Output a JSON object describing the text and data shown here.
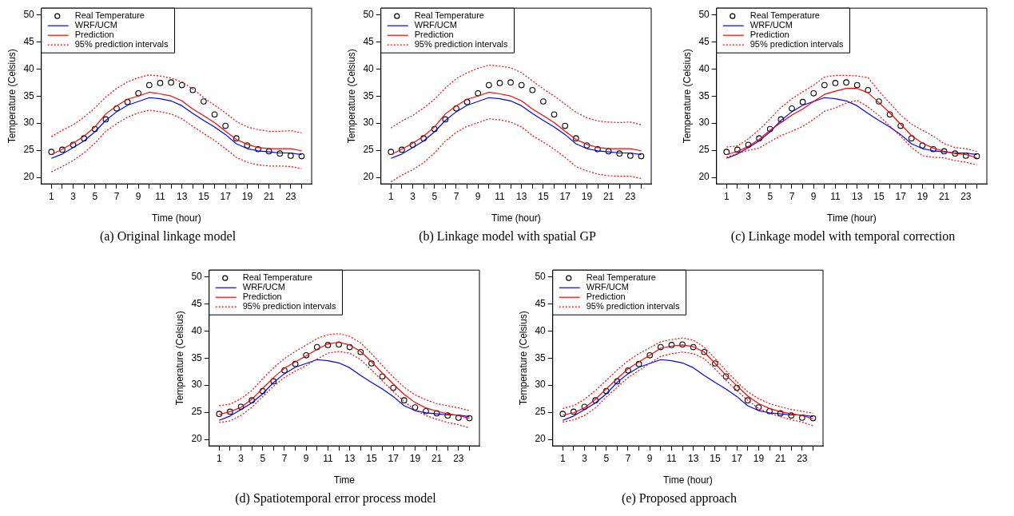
{
  "chart_data": [
    {
      "type": "line",
      "title": "(a) Original linkage model",
      "xlabel": "Time (hour)",
      "ylabel": "Temperature (Celsius)",
      "legend": "top left",
      "x": [
        1,
        2,
        3,
        4,
        5,
        6,
        7,
        8,
        9,
        10,
        11,
        12,
        13,
        14,
        15,
        16,
        17,
        18,
        19,
        20,
        21,
        22,
        23,
        24
      ],
      "xlim": [
        0.08,
        24.92
      ],
      "xticks": [
        1,
        {
          "value": 2,
          "label": null
        },
        3,
        {
          "value": 4,
          "label": null
        },
        5,
        {
          "value": 6,
          "label": null
        },
        7,
        {
          "value": 8,
          "label": null
        },
        9,
        {
          "value": 10,
          "label": null
        },
        11,
        {
          "value": 12,
          "label": null
        },
        13,
        {
          "value": 14,
          "label": null
        },
        15,
        {
          "value": 16,
          "label": null
        },
        17,
        {
          "value": 18,
          "label": null
        },
        19,
        {
          "value": 20,
          "label": null
        },
        21,
        {
          "value": 22,
          "label": null
        },
        23,
        {
          "value": 24,
          "label": null
        }
      ],
      "ylim": [
        18.8,
        51.2
      ],
      "yticks": [
        20,
        25,
        30,
        35,
        40,
        45,
        50
      ],
      "series": [
        {
          "name": "Real Temperature",
          "type": "scatter",
          "marker": "circle",
          "color": "#000000",
          "values": [
            24.7,
            25.1,
            26.0,
            27.2,
            28.9,
            30.7,
            32.7,
            33.9,
            35.5,
            37.0,
            37.4,
            37.5,
            37.0,
            36.1,
            34.0,
            31.6,
            29.5,
            27.2,
            25.9,
            25.2,
            24.8,
            24.4,
            24.0,
            23.9
          ]
        },
        {
          "name": "WRF/UCM",
          "type": "line",
          "color": "#0000ff",
          "values": [
            23.5,
            24.3,
            25.5,
            26.7,
            28.4,
            30.5,
            32.1,
            33.3,
            34.0,
            34.7,
            34.5,
            34.1,
            33.2,
            31.8,
            30.5,
            29.3,
            27.9,
            26.2,
            25.3,
            24.9,
            24.7,
            24.5,
            24.5,
            24.2
          ]
        },
        {
          "name": "Prediction",
          "type": "line",
          "color": "#ff0000",
          "values": [
            24.2,
            25.2,
            26.3,
            27.6,
            29.3,
            31.7,
            33.2,
            34.4,
            35.0,
            35.7,
            35.4,
            35.0,
            34.1,
            32.6,
            31.4,
            30.1,
            28.5,
            27.0,
            26.1,
            25.5,
            25.3,
            25.3,
            25.3,
            24.9
          ]
        },
        {
          "name": "95% prediction intervals",
          "type": "line",
          "line_style": "dotted",
          "color": "#ff0000",
          "values": [
            27.5,
            28.7,
            29.7,
            31.1,
            32.8,
            34.8,
            36.4,
            37.6,
            38.4,
            38.9,
            38.7,
            38.3,
            37.6,
            36.3,
            34.7,
            33.3,
            31.9,
            30.3,
            29.3,
            28.8,
            28.5,
            28.5,
            28.6,
            28.2
          ]
        },
        {
          "type": "line",
          "line_style": "dotted",
          "color": "#ff0000",
          "values": [
            21.0,
            22.0,
            23.1,
            24.5,
            26.3,
            28.5,
            29.9,
            31.1,
            31.9,
            32.4,
            32.1,
            31.7,
            30.8,
            29.4,
            28.1,
            26.8,
            25.3,
            23.7,
            22.8,
            22.3,
            22.1,
            22.1,
            22.0,
            21.6
          ]
        }
      ]
    },
    {
      "type": "line",
      "title": "(b) Linkage model with spatial GP",
      "xlabel": "Time (hour)",
      "ylabel": "Temperature (Celsius)",
      "legend": "top left",
      "x": [
        1,
        2,
        3,
        4,
        5,
        6,
        7,
        8,
        9,
        10,
        11,
        12,
        13,
        14,
        15,
        16,
        17,
        18,
        19,
        20,
        21,
        22,
        23,
        24
      ],
      "xlim": [
        0.08,
        24.92
      ],
      "xticks": [
        1,
        {
          "value": 2,
          "label": null
        },
        3,
        {
          "value": 4,
          "label": null
        },
        5,
        {
          "value": 6,
          "label": null
        },
        7,
        {
          "value": 8,
          "label": null
        },
        9,
        {
          "value": 10,
          "label": null
        },
        11,
        {
          "value": 12,
          "label": null
        },
        13,
        {
          "value": 14,
          "label": null
        },
        15,
        {
          "value": 16,
          "label": null
        },
        17,
        {
          "value": 18,
          "label": null
        },
        19,
        {
          "value": 20,
          "label": null
        },
        21,
        {
          "value": 22,
          "label": null
        },
        23,
        {
          "value": 24,
          "label": null
        }
      ],
      "ylim": [
        18.8,
        51.2
      ],
      "yticks": [
        20,
        25,
        30,
        35,
        40,
        45,
        50
      ],
      "series": [
        {
          "name": "Real Temperature",
          "type": "scatter",
          "marker": "circle",
          "color": "#000000",
          "values": [
            24.7,
            25.1,
            26.0,
            27.2,
            28.9,
            30.7,
            32.7,
            33.9,
            35.5,
            37.0,
            37.4,
            37.5,
            37.0,
            36.1,
            34.0,
            31.6,
            29.5,
            27.2,
            25.9,
            25.2,
            24.8,
            24.4,
            24.0,
            23.9
          ]
        },
        {
          "name": "WRF/UCM",
          "type": "line",
          "color": "#0000ff",
          "values": [
            23.5,
            24.3,
            25.5,
            26.7,
            28.4,
            30.5,
            32.1,
            33.3,
            34.0,
            34.7,
            34.5,
            34.1,
            33.2,
            31.8,
            30.5,
            29.3,
            27.9,
            26.2,
            25.3,
            24.9,
            24.7,
            24.5,
            24.5,
            24.2
          ]
        },
        {
          "name": "Prediction",
          "type": "line",
          "color": "#ff0000",
          "values": [
            24.2,
            25.2,
            26.3,
            27.6,
            29.3,
            31.7,
            33.2,
            34.4,
            35.0,
            35.7,
            35.4,
            35.0,
            34.1,
            32.6,
            31.4,
            30.1,
            28.5,
            27.0,
            26.1,
            25.5,
            25.3,
            25.3,
            25.3,
            24.9
          ]
        },
        {
          "name": "95% prediction intervals",
          "type": "line",
          "line_style": "dotted",
          "color": "#ff0000",
          "values": [
            29.1,
            30.4,
            31.4,
            32.8,
            34.4,
            36.5,
            38.2,
            39.3,
            40.1,
            40.7,
            40.5,
            40.2,
            39.3,
            37.8,
            36.3,
            35.0,
            33.5,
            32.0,
            31.0,
            30.4,
            30.2,
            30.1,
            30.2,
            29.7
          ]
        },
        {
          "type": "line",
          "line_style": "dotted",
          "color": "#ff0000",
          "values": [
            19.2,
            20.4,
            21.4,
            22.7,
            24.5,
            26.7,
            28.3,
            29.4,
            30.1,
            30.8,
            30.6,
            30.2,
            29.3,
            27.7,
            26.5,
            25.2,
            23.7,
            22.0,
            21.2,
            20.6,
            20.3,
            20.2,
            20.2,
            19.8
          ]
        }
      ]
    },
    {
      "type": "line",
      "title": "(c) Linkage model with temporal correction",
      "xlabel": "Time (hour)",
      "ylabel": "Temperature (Celsius)",
      "legend": "top left",
      "x": [
        1,
        2,
        3,
        4,
        5,
        6,
        7,
        8,
        9,
        10,
        11,
        12,
        13,
        14,
        15,
        16,
        17,
        18,
        19,
        20,
        21,
        22,
        23,
        24
      ],
      "xlim": [
        0.08,
        24.92
      ],
      "xticks": [
        1,
        {
          "value": 2,
          "label": null
        },
        3,
        {
          "value": 4,
          "label": null
        },
        5,
        {
          "value": 6,
          "label": null
        },
        7,
        {
          "value": 8,
          "label": null
        },
        9,
        {
          "value": 10,
          "label": null
        },
        11,
        {
          "value": 12,
          "label": null
        },
        13,
        {
          "value": 14,
          "label": null
        },
        15,
        {
          "value": 16,
          "label": null
        },
        17,
        {
          "value": 18,
          "label": null
        },
        19,
        {
          "value": 20,
          "label": null
        },
        21,
        {
          "value": 22,
          "label": null
        },
        23,
        {
          "value": 24,
          "label": null
        }
      ],
      "ylim": [
        18.8,
        51.2
      ],
      "yticks": [
        20,
        25,
        30,
        35,
        40,
        45,
        50
      ],
      "series": [
        {
          "name": "Real Temperature",
          "type": "scatter",
          "marker": "circle",
          "color": "#000000",
          "values": [
            24.7,
            25.1,
            26.0,
            27.2,
            28.9,
            30.7,
            32.7,
            33.9,
            35.5,
            37.0,
            37.4,
            37.5,
            37.0,
            36.1,
            34.0,
            31.6,
            29.5,
            27.2,
            25.9,
            25.2,
            24.8,
            24.4,
            24.0,
            23.9
          ]
        },
        {
          "name": "WRF/UCM",
          "type": "line",
          "color": "#0000ff",
          "values": [
            23.5,
            24.3,
            25.5,
            26.7,
            28.4,
            30.5,
            32.1,
            33.3,
            34.0,
            34.7,
            34.5,
            34.1,
            33.2,
            31.8,
            30.5,
            29.3,
            27.9,
            26.2,
            25.3,
            24.9,
            24.7,
            24.5,
            24.5,
            24.2
          ]
        },
        {
          "name": "Prediction",
          "type": "line",
          "color": "#ff0000",
          "values": [
            24.2,
            24.8,
            25.7,
            27.0,
            28.7,
            30.1,
            31.5,
            32.6,
            34.0,
            35.3,
            35.9,
            36.4,
            36.4,
            35.6,
            33.8,
            31.9,
            29.8,
            27.7,
            26.3,
            25.4,
            24.8,
            24.4,
            24.2,
            23.6
          ]
        },
        {
          "name": "95% prediction intervals",
          "type": "line",
          "line_style": "dotted",
          "color": "#ff0000",
          "values": [
            25.6,
            25.8,
            27.1,
            28.8,
            30.8,
            32.9,
            34.5,
            35.8,
            37.0,
            38.5,
            38.8,
            38.8,
            38.7,
            38.4,
            35.9,
            33.7,
            31.5,
            29.8,
            28.7,
            27.6,
            26.2,
            25.5,
            25.3,
            24.8
          ]
        },
        {
          "type": "line",
          "line_style": "dotted",
          "color": "#ff0000",
          "values": [
            23.7,
            24.4,
            25.0,
            25.4,
            26.6,
            27.7,
            28.5,
            29.4,
            30.7,
            32.2,
            32.8,
            33.7,
            34.2,
            33.0,
            31.4,
            29.5,
            27.6,
            25.5,
            24.0,
            23.7,
            23.6,
            23.1,
            22.8,
            22.3
          ]
        }
      ]
    },
    {
      "type": "line",
      "title": "(d) Spatiotemporal error process model",
      "xlabel": "Time",
      "ylabel": "Temperature (Celsius)",
      "legend": "top left",
      "x": [
        1,
        2,
        3,
        4,
        5,
        6,
        7,
        8,
        9,
        10,
        11,
        12,
        13,
        14,
        15,
        16,
        17,
        18,
        19,
        20,
        21,
        22,
        23,
        24
      ],
      "xlim": [
        0.08,
        24.92
      ],
      "xticks": [
        1,
        {
          "value": 2,
          "label": null
        },
        3,
        {
          "value": 4,
          "label": null
        },
        5,
        {
          "value": 6,
          "label": null
        },
        7,
        {
          "value": 8,
          "label": null
        },
        9,
        {
          "value": 10,
          "label": null
        },
        11,
        {
          "value": 12,
          "label": null
        },
        13,
        {
          "value": 14,
          "label": null
        },
        15,
        {
          "value": 16,
          "label": null
        },
        17,
        {
          "value": 18,
          "label": null
        },
        19,
        {
          "value": 20,
          "label": null
        },
        21,
        {
          "value": 22,
          "label": null
        },
        23,
        {
          "value": 24,
          "label": null
        }
      ],
      "ylim": [
        18.8,
        51.2
      ],
      "yticks": [
        20,
        25,
        30,
        35,
        40,
        45,
        50
      ],
      "series": [
        {
          "name": "Real Temperature",
          "type": "scatter",
          "marker": "circle",
          "color": "#000000",
          "values": [
            24.7,
            25.1,
            26.0,
            27.2,
            28.9,
            30.7,
            32.7,
            33.9,
            35.5,
            37.0,
            37.4,
            37.5,
            37.0,
            36.1,
            34.0,
            31.6,
            29.5,
            27.2,
            25.9,
            25.2,
            24.8,
            24.4,
            24.0,
            23.9
          ]
        },
        {
          "name": "WRF/UCM",
          "type": "line",
          "color": "#0000ff",
          "values": [
            23.5,
            24.3,
            25.5,
            26.7,
            28.4,
            30.5,
            32.1,
            33.3,
            34.0,
            34.7,
            34.5,
            34.1,
            33.2,
            31.8,
            30.5,
            29.3,
            27.9,
            26.2,
            25.3,
            24.9,
            24.7,
            24.5,
            24.5,
            24.2
          ]
        },
        {
          "name": "Prediction",
          "type": "line",
          "color": "#ff0000",
          "values": [
            24.6,
            25.1,
            25.9,
            27.4,
            29.4,
            31.4,
            33.1,
            34.3,
            35.4,
            36.6,
            37.6,
            37.9,
            37.4,
            36.2,
            34.3,
            32.2,
            30.2,
            28.3,
            26.8,
            25.8,
            25.2,
            24.7,
            24.4,
            23.9
          ]
        },
        {
          "name": "95% prediction intervals",
          "type": "line",
          "line_style": "dotted",
          "color": "#ff0000",
          "values": [
            26.2,
            26.5,
            27.5,
            29.0,
            31.2,
            33.2,
            34.9,
            36.2,
            37.4,
            38.6,
            39.3,
            39.5,
            39.0,
            37.8,
            35.8,
            33.6,
            31.5,
            29.6,
            28.2,
            27.3,
            26.6,
            26.2,
            25.8,
            25.3
          ]
        },
        {
          "type": "line",
          "line_style": "dotted",
          "color": "#ff0000",
          "values": [
            23.1,
            23.4,
            24.4,
            25.9,
            27.9,
            29.8,
            31.4,
            32.6,
            33.6,
            34.8,
            35.9,
            36.2,
            35.9,
            34.7,
            32.8,
            30.8,
            28.8,
            27.0,
            25.4,
            24.4,
            23.7,
            23.1,
            22.7,
            22.1
          ]
        }
      ]
    },
    {
      "type": "line",
      "title": "(e) Proposed approach",
      "xlabel": "Time (hour)",
      "ylabel": "Temperature (Celsius)",
      "legend": "top left",
      "x": [
        1,
        2,
        3,
        4,
        5,
        6,
        7,
        8,
        9,
        10,
        11,
        12,
        13,
        14,
        15,
        16,
        17,
        18,
        19,
        20,
        21,
        22,
        23,
        24
      ],
      "xlim": [
        0.08,
        24.92
      ],
      "xticks": [
        1,
        {
          "value": 2,
          "label": null
        },
        3,
        {
          "value": 4,
          "label": null
        },
        5,
        {
          "value": 6,
          "label": null
        },
        7,
        {
          "value": 8,
          "label": null
        },
        9,
        {
          "value": 10,
          "label": null
        },
        11,
        {
          "value": 12,
          "label": null
        },
        13,
        {
          "value": 14,
          "label": null
        },
        15,
        {
          "value": 16,
          "label": null
        },
        17,
        {
          "value": 18,
          "label": null
        },
        19,
        {
          "value": 20,
          "label": null
        },
        21,
        {
          "value": 22,
          "label": null
        },
        23,
        {
          "value": 24,
          "label": null
        }
      ],
      "ylim": [
        18.8,
        51.2
      ],
      "yticks": [
        20,
        25,
        30,
        35,
        40,
        45,
        50
      ],
      "series": [
        {
          "name": "Real Temperature",
          "type": "scatter",
          "marker": "circle",
          "color": "#000000",
          "values": [
            24.7,
            25.1,
            26.0,
            27.2,
            28.9,
            30.7,
            32.7,
            33.9,
            35.5,
            37.0,
            37.4,
            37.5,
            37.0,
            36.1,
            34.0,
            31.6,
            29.5,
            27.2,
            25.9,
            25.2,
            24.8,
            24.4,
            24.0,
            23.9
          ]
        },
        {
          "name": "WRF/UCM",
          "type": "line",
          "color": "#0000ff",
          "values": [
            23.5,
            24.3,
            25.5,
            26.7,
            28.4,
            30.5,
            32.1,
            33.3,
            34.0,
            34.7,
            34.5,
            34.1,
            33.2,
            31.8,
            30.5,
            29.3,
            27.9,
            26.2,
            25.3,
            24.9,
            24.7,
            24.5,
            24.5,
            24.2
          ]
        },
        {
          "name": "Prediction",
          "type": "line",
          "color": "#ff0000",
          "values": [
            24.5,
            24.9,
            25.8,
            27.4,
            29.3,
            31.2,
            33.0,
            34.3,
            35.5,
            36.8,
            37.2,
            37.4,
            37.1,
            36.1,
            34.0,
            31.8,
            29.9,
            28.0,
            26.6,
            25.7,
            25.1,
            24.7,
            24.4,
            23.8
          ]
        },
        {
          "name": "95% prediction intervals",
          "type": "line",
          "line_style": "dotted",
          "color": "#ff0000",
          "values": [
            25.7,
            26.2,
            27.4,
            29.0,
            30.9,
            32.8,
            34.5,
            35.8,
            36.9,
            38.0,
            38.4,
            38.7,
            38.3,
            37.0,
            34.9,
            32.7,
            30.6,
            28.8,
            27.5,
            26.6,
            26.0,
            25.5,
            25.2,
            24.8
          ]
        },
        {
          "type": "line",
          "line_style": "dotted",
          "color": "#ff0000",
          "values": [
            23.2,
            23.6,
            24.4,
            25.8,
            27.8,
            29.6,
            31.4,
            32.7,
            34.0,
            35.3,
            35.8,
            36.1,
            35.8,
            34.9,
            33.0,
            30.9,
            29.0,
            27.2,
            25.7,
            24.8,
            24.2,
            23.6,
            23.2,
            22.5
          ]
        }
      ]
    }
  ]
}
